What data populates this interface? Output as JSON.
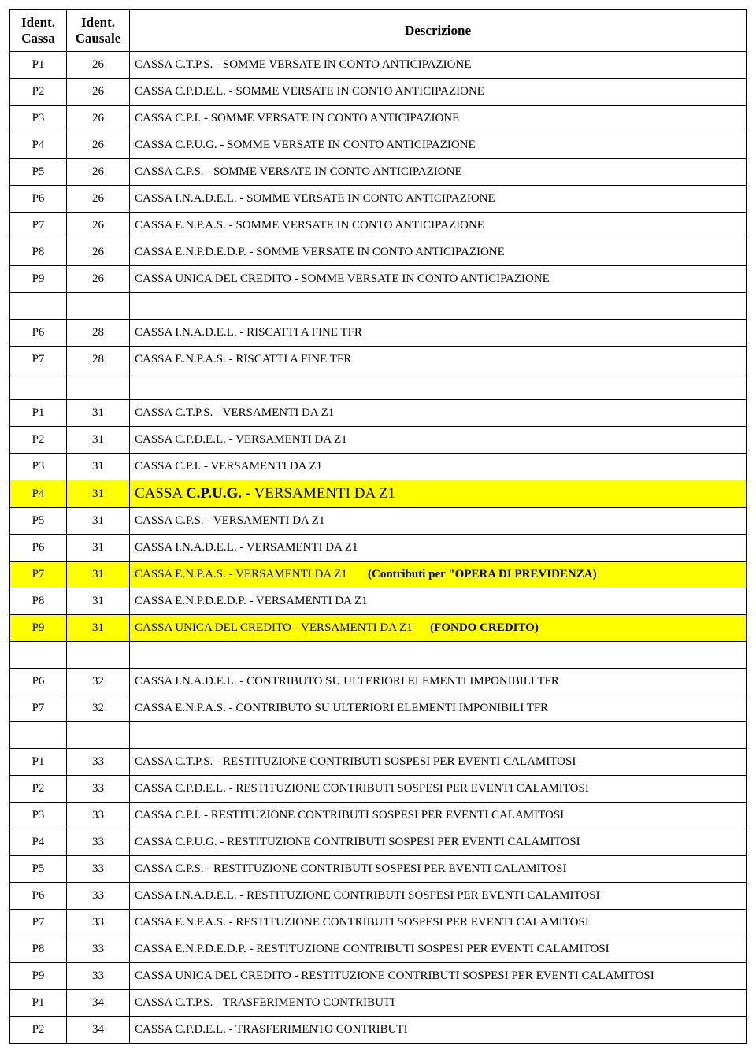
{
  "headers": {
    "cassa": "Ident. Cassa",
    "causale": "Ident. Causale",
    "desc": "Descrizione"
  },
  "highlight_color": "#ffff00",
  "rows": [
    {
      "c": "P1",
      "u": "26",
      "d": "CASSA C.T.P.S. - SOMME VERSATE IN CONTO ANTICIPAZIONE"
    },
    {
      "c": "P2",
      "u": "26",
      "d": "CASSA C.P.D.E.L. - SOMME VERSATE IN CONTO ANTICIPAZIONE"
    },
    {
      "c": "P3",
      "u": "26",
      "d": "CASSA C.P.I. - SOMME VERSATE IN CONTO ANTICIPAZIONE"
    },
    {
      "c": "P4",
      "u": "26",
      "d": "CASSA C.P.U.G. - SOMME VERSATE IN CONTO ANTICIPAZIONE"
    },
    {
      "c": "P5",
      "u": "26",
      "d": "CASSA C.P.S. - SOMME VERSATE IN CONTO ANTICIPAZIONE"
    },
    {
      "c": "P6",
      "u": "26",
      "d": "CASSA I.N.A.D.E.L. - SOMME VERSATE IN CONTO ANTICIPAZIONE"
    },
    {
      "c": "P7",
      "u": "26",
      "d": "CASSA E.N.P.A.S. - SOMME VERSATE IN CONTO ANTICIPAZIONE"
    },
    {
      "c": "P8",
      "u": "26",
      "d": "CASSA E.N.P.D.E.D.P. - SOMME VERSATE IN CONTO ANTICIPAZIONE"
    },
    {
      "c": "P9",
      "u": "26",
      "d": "CASSA UNICA DEL CREDITO - SOMME VERSATE IN CONTO ANTICIPAZIONE"
    },
    {
      "blank": true
    },
    {
      "c": "P6",
      "u": "28",
      "d": "CASSA I.N.A.D.E.L. - RISCATTI A FINE TFR"
    },
    {
      "c": "P7",
      "u": "28",
      "d": "CASSA E.N.P.A.S. - RISCATTI A FINE TFR"
    },
    {
      "blank": true
    },
    {
      "c": "P1",
      "u": "31",
      "d": "CASSA C.T.P.S. - VERSAMENTI DA Z1"
    },
    {
      "c": "P2",
      "u": "31",
      "d": "CASSA C.P.D.E.L. - VERSAMENTI DA Z1"
    },
    {
      "c": "P3",
      "u": "31",
      "d": "CASSA C.P.I. - VERSAMENTI DA Z1"
    },
    {
      "c": "P4",
      "u": "31",
      "hl": true,
      "p4": true,
      "d_parts": [
        {
          "t": "CASSA ",
          "b": false
        },
        {
          "t": "C.P.U.G.",
          "b": true
        },
        {
          "t": " - VERSAMENTI DA Z1",
          "b": false
        }
      ]
    },
    {
      "c": "P5",
      "u": "31",
      "d": "CASSA C.P.S. - VERSAMENTI DA Z1"
    },
    {
      "c": "P6",
      "u": "31",
      "d": "CASSA I.N.A.D.E.L. - VERSAMENTI DA Z1"
    },
    {
      "c": "P7",
      "u": "31",
      "hl": true,
      "d_parts": [
        {
          "t": "CASSA E.N.P.A.S. - VERSAMENTI DA Z1       ",
          "b": false
        },
        {
          "t": "(Contributi per \"OPERA DI PREVIDENZA)",
          "b": true
        }
      ]
    },
    {
      "c": "P8",
      "u": "31",
      "d": "CASSA E.N.P.D.E.D.P. - VERSAMENTI DA Z1"
    },
    {
      "c": "P9",
      "u": "31",
      "hl": true,
      "d_parts": [
        {
          "t": "CASSA UNICA DEL CREDITO - VERSAMENTI DA Z1      ",
          "b": false
        },
        {
          "t": "(FONDO CREDITO)",
          "b": true
        }
      ]
    },
    {
      "blank": true
    },
    {
      "c": "P6",
      "u": "32",
      "d": "CASSA I.N.A.D.E.L. - CONTRIBUTO SU ULTERIORI ELEMENTI IMPONIBILI TFR"
    },
    {
      "c": "P7",
      "u": "32",
      "d": "CASSA E.N.P.A.S. - CONTRIBUTO SU ULTERIORI ELEMENTI IMPONIBILI TFR"
    },
    {
      "blank": true
    },
    {
      "c": "P1",
      "u": "33",
      "d": "CASSA C.T.P.S. - RESTITUZIONE CONTRIBUTI SOSPESI PER EVENTI CALAMITOSI"
    },
    {
      "c": "P2",
      "u": "33",
      "d": "CASSA C.P.D.E.L. - RESTITUZIONE CONTRIBUTI SOSPESI PER EVENTI CALAMITOSI"
    },
    {
      "c": "P3",
      "u": "33",
      "d": "CASSA C.P.I. - RESTITUZIONE CONTRIBUTI SOSPESI PER EVENTI CALAMITOSI"
    },
    {
      "c": "P4",
      "u": "33",
      "d": "CASSA C.P.U.G. - RESTITUZIONE CONTRIBUTI SOSPESI PER EVENTI CALAMITOSI"
    },
    {
      "c": "P5",
      "u": "33",
      "d": "CASSA C.P.S. - RESTITUZIONE CONTRIBUTI SOSPESI PER EVENTI CALAMITOSI"
    },
    {
      "c": "P6",
      "u": "33",
      "d": "CASSA I.N.A.D.E.L. - RESTITUZIONE CONTRIBUTI SOSPESI PER EVENTI CALAMITOSI"
    },
    {
      "c": "P7",
      "u": "33",
      "d": "CASSA E.N.P.A.S. - RESTITUZIONE CONTRIBUTI SOSPESI PER EVENTI CALAMITOSI"
    },
    {
      "c": "P8",
      "u": "33",
      "d": "CASSA E.N.P.D.E.D.P. - RESTITUZIONE CONTRIBUTI SOSPESI PER EVENTI CALAMITOSI"
    },
    {
      "c": "P9",
      "u": "33",
      "d": "CASSA UNICA DEL CREDITO - RESTITUZIONE CONTRIBUTI SOSPESI PER EVENTI CALAMITOSI"
    },
    {
      "c": "P1",
      "u": "34",
      "d": "CASSA C.T.P.S. - TRASFERIMENTO CONTRIBUTI"
    },
    {
      "c": "P2",
      "u": "34",
      "d": "CASSA C.P.D.E.L. - TRASFERIMENTO CONTRIBUTI"
    }
  ]
}
